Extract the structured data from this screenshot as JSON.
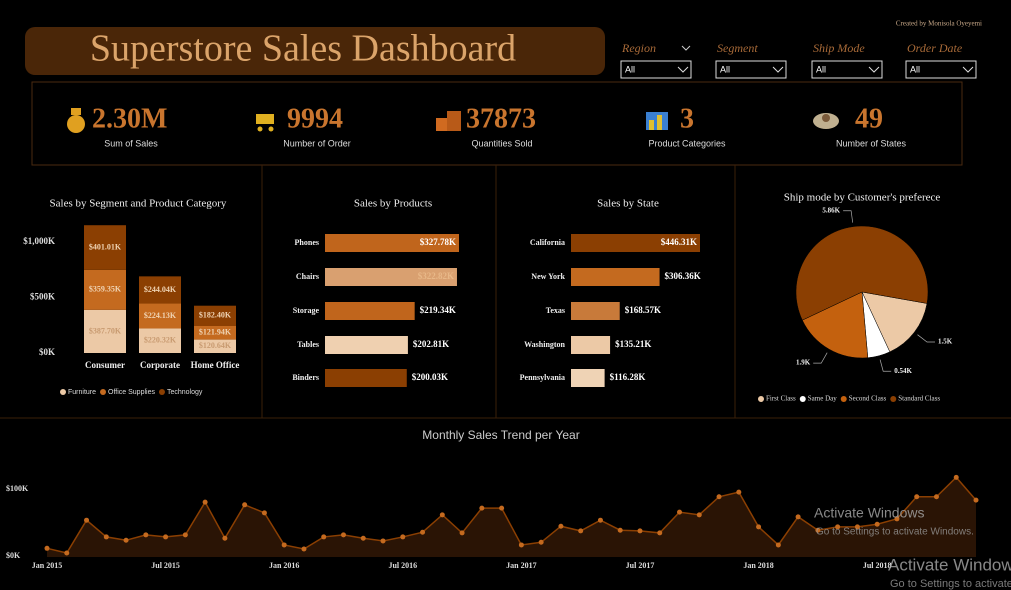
{
  "header": {
    "title": "Superstore Sales Dashboard",
    "credit": "Created by Monisola Oyeyemi"
  },
  "filters": [
    {
      "label": "Region",
      "value": "All"
    },
    {
      "label": "Segment",
      "value": "All"
    },
    {
      "label": "Ship Mode",
      "value": "All"
    },
    {
      "label": "Order Date",
      "value": "All"
    }
  ],
  "kpis": [
    {
      "value": "2.30M",
      "label": "Sum of Sales"
    },
    {
      "value": "9994",
      "label": "Number of Order"
    },
    {
      "value": "37873",
      "label": "Quantities Sold"
    },
    {
      "value": "3",
      "label": "Product Categories"
    },
    {
      "value": "49",
      "label": "Number of States"
    }
  ],
  "chart_data": [
    {
      "type": "stacked_bar",
      "title": "Sales by Segment and Product Category",
      "categories": [
        "Consumer",
        "Corporate",
        "Home Office"
      ],
      "series": [
        {
          "name": "Furniture",
          "color": "#ecc9a6",
          "values": [
            387700,
            220320,
            120640
          ],
          "value_labels": [
            "$387.70K",
            "$220.32K",
            "$120.64K"
          ]
        },
        {
          "name": "Office Supplies",
          "color": "#c46a1f",
          "values": [
            359350,
            224130,
            121940
          ],
          "value_labels": [
            "$359.35K",
            "$224.13K",
            "$121.94K"
          ]
        },
        {
          "name": "Technology",
          "color": "#8b3f02",
          "values": [
            401010,
            244040,
            182400
          ],
          "value_labels": [
            "$401.01K",
            "$244.04K",
            "$182.40K"
          ]
        }
      ],
      "ylim": [
        0,
        1150000
      ],
      "yticks": [
        {
          "value": 0,
          "label": "$0K"
        },
        {
          "value": 500000,
          "label": "$500K"
        },
        {
          "value": 1000000,
          "label": "$1,000K"
        }
      ]
    },
    {
      "type": "hbar",
      "title": "Sales by Products",
      "categories": [
        "Phones",
        "Chairs",
        "Storage",
        "Tables",
        "Binders"
      ],
      "values": [
        327780,
        322820,
        219340,
        202810,
        200030
      ],
      "value_labels": [
        "$327.78K",
        "$322.82K",
        "$219.34K",
        "$202.81K",
        "$200.03K"
      ],
      "colors": [
        "#c0651c",
        "#d9a070",
        "#c0651c",
        "#efd0b0",
        "#8b3f02"
      ]
    },
    {
      "type": "hbar",
      "title": "Sales by State",
      "categories": [
        "California",
        "New York",
        "Texas",
        "Washington",
        "Pennsylvania"
      ],
      "values": [
        446310,
        306360,
        168570,
        135210,
        116280
      ],
      "value_labels": [
        "$446.31K",
        "$306.36K",
        "$168.57K",
        "$135.21K",
        "$116.28K"
      ],
      "colors": [
        "#8b3f02",
        "#c46a1f",
        "#c87a3a",
        "#ecc9a6",
        "#efd3b5"
      ]
    },
    {
      "type": "pie",
      "title": "Ship mode by Customer's preferece",
      "categories": [
        "First Class",
        "Same Day",
        "Second Class",
        "Standard Class"
      ],
      "values": [
        1500,
        540,
        1900,
        5860
      ],
      "value_labels": [
        "1.5K",
        "0.54K",
        "1.9K",
        "5.86K"
      ],
      "colors": [
        "#ecc9a6",
        "#ffffff",
        "#c4610e",
        "#8b3f02"
      ]
    },
    {
      "type": "line",
      "title": "Monthly Sales Trend per Year",
      "categories": [
        "Jan 2015",
        null,
        null,
        null,
        null,
        null,
        "Jul 2015",
        null,
        null,
        null,
        null,
        null,
        "Jan 2016",
        null,
        null,
        null,
        null,
        null,
        "Jul 2016",
        null,
        null,
        null,
        null,
        null,
        "Jan 2017",
        null,
        null,
        null,
        null,
        null,
        "Jul 2017",
        null,
        null,
        null,
        null,
        null,
        "Jan 2018",
        null,
        null,
        null,
        null,
        null,
        "Jul 2018",
        null,
        null,
        null,
        null,
        null
      ],
      "values": [
        13000,
        6000,
        55000,
        30000,
        25000,
        33000,
        30000,
        33000,
        82000,
        28000,
        78000,
        66000,
        18000,
        12000,
        30000,
        33000,
        28000,
        24000,
        30000,
        37000,
        63000,
        36000,
        73000,
        73000,
        18000,
        22000,
        46000,
        39000,
        55000,
        40000,
        39000,
        36000,
        67000,
        63000,
        90000,
        97000,
        45000,
        18000,
        60000,
        40000,
        45000,
        45000,
        49000,
        57000,
        90000,
        90000,
        119000,
        85000
      ],
      "color": "#8b3f02",
      "marker_color": "#c46a1f",
      "ylim": [
        0,
        130000
      ],
      "yticks": [
        {
          "value": 0,
          "label": "$0K"
        },
        {
          "value": 100000,
          "label": "$100K"
        }
      ]
    }
  ],
  "watermark": [
    {
      "title": "Activate Windows",
      "subtitle": "Go to Settings to activate Windows."
    },
    {
      "title": "Activate Windows",
      "subtitle": "Go to Settings to activate Windows."
    }
  ]
}
